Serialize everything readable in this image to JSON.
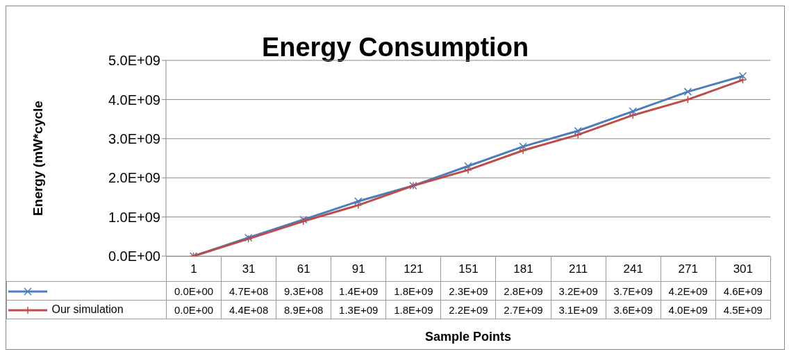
{
  "chart_data": {
    "type": "line",
    "title": "Energy Consumption",
    "xlabel": "Sample Points",
    "ylabel": "Energy (mW*cycle",
    "categories": [
      "1",
      "31",
      "61",
      "91",
      "121",
      "151",
      "181",
      "211",
      "241",
      "271",
      "301"
    ],
    "series": [
      {
        "color": "#4a7ebb",
        "values": [
          0,
          470000000,
          930000000,
          1400000000,
          1800000000,
          2300000000,
          2800000000,
          3200000000,
          3700000000,
          4200000000,
          4600000000
        ],
        "value_labels": [
          "0.0E+00",
          "4.7E+08",
          "9.3E+08",
          "1.4E+09",
          "1.8E+09",
          "2.3E+09",
          "2.8E+09",
          "3.2E+09",
          "3.7E+09",
          "4.2E+09",
          "4.6E+09"
        ]
      },
      {
        "name": "Our simulation",
        "color": "#be4b48",
        "values": [
          0,
          440000000,
          890000000,
          1300000000,
          1800000000,
          2200000000,
          2700000000,
          3100000000,
          3600000000,
          4000000000,
          4500000000
        ],
        "value_labels": [
          "0.0E+00",
          "4.4E+08",
          "8.9E+08",
          "1.3E+09",
          "1.8E+09",
          "2.2E+09",
          "2.7E+09",
          "3.1E+09",
          "3.6E+09",
          "4.0E+09",
          "4.5E+09"
        ]
      }
    ],
    "ylim": [
      0,
      5000000000
    ],
    "yticks": [
      {
        "value": 0,
        "label": "0.0E+00"
      },
      {
        "value": 1000000000,
        "label": "1.0E+09"
      },
      {
        "value": 2000000000,
        "label": "2.0E+09"
      },
      {
        "value": 3000000000,
        "label": "3.0E+09"
      },
      {
        "value": 4000000000,
        "label": "4.0E+09"
      },
      {
        "value": 5000000000,
        "label": "5.0E+09"
      }
    ],
    "grid": "y",
    "legend": "bottom",
    "marker": "cross",
    "line_style": "solid"
  }
}
